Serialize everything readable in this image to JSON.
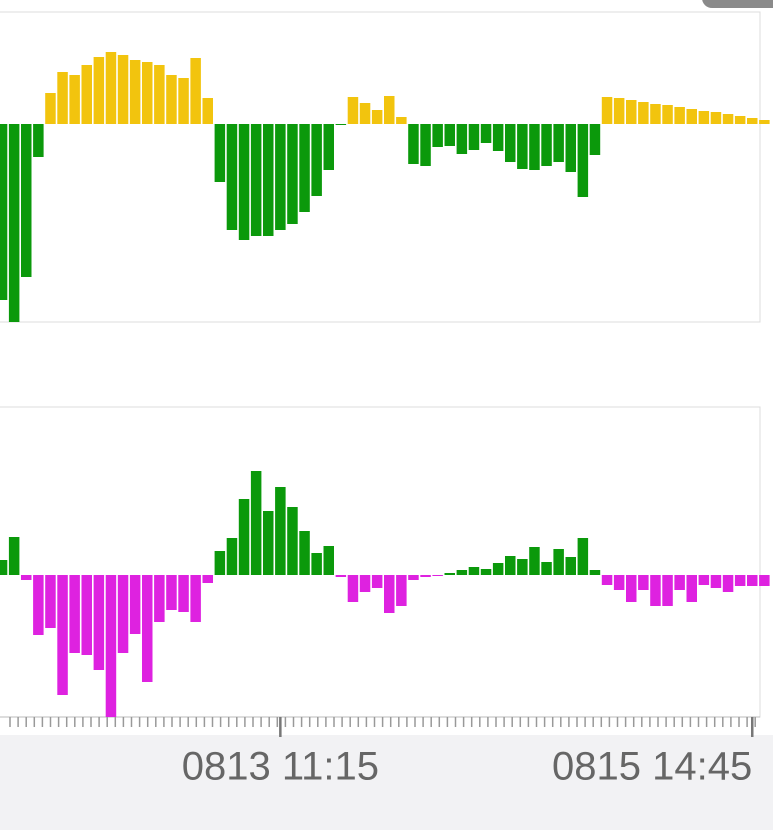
{
  "chart_data": [
    {
      "type": "bar",
      "positive_color": "#f2c40e",
      "negative_color": "#0b990b",
      "ylim": [
        -198,
        112
      ],
      "values": [
        -176,
        -198,
        -153,
        -33,
        31,
        52,
        49,
        59,
        67,
        72,
        69,
        64,
        62,
        59,
        49,
        46,
        66,
        26,
        -58,
        -106,
        -116,
        -112,
        -112,
        -106,
        -100,
        -88,
        -72,
        -46,
        -1,
        27,
        21,
        14,
        28,
        7,
        -40,
        -42,
        -23,
        -22,
        -30,
        -26,
        -19,
        -27,
        -38,
        -45,
        -46,
        -42,
        -38,
        -48,
        -73,
        -31,
        27,
        26,
        24,
        22,
        20,
        19,
        17,
        15,
        13,
        12,
        10,
        8,
        6,
        4
      ]
    },
    {
      "type": "bar",
      "positive_color": "#0b990b",
      "negative_color": "#de22e0",
      "ylim": [
        -142,
        168
      ],
      "categories": [
        null,
        null,
        null,
        null,
        null,
        null,
        null,
        null,
        null,
        null,
        null,
        null,
        null,
        null,
        null,
        null,
        null,
        null,
        null,
        null,
        null,
        null,
        null,
        "0813 11:15",
        null,
        null,
        null,
        null,
        null,
        null,
        null,
        null,
        null,
        null,
        null,
        null,
        null,
        null,
        null,
        null,
        null,
        null,
        null,
        null,
        null,
        null,
        null,
        null,
        null,
        null,
        null,
        null,
        null,
        null,
        null,
        null,
        null,
        null,
        null,
        null,
        null,
        null,
        "0815 14:45",
        null
      ],
      "values": [
        15,
        38,
        -5,
        -60,
        -53,
        -120,
        -78,
        -80,
        -95,
        -142,
        -78,
        -59,
        -107,
        -47,
        -35,
        -37,
        -47,
        -8,
        24,
        37,
        76,
        104,
        64,
        88,
        68,
        44,
        22,
        29,
        -2,
        -27,
        -17,
        -13,
        -38,
        -31,
        -5,
        -2,
        -1,
        2,
        5,
        8,
        6,
        12,
        19,
        16,
        28,
        13,
        26,
        18,
        37,
        5,
        -10,
        -15,
        -27,
        -15,
        -31,
        -31,
        -15,
        -27,
        -10,
        -13,
        -17,
        -11,
        -11,
        -11
      ]
    }
  ]
}
